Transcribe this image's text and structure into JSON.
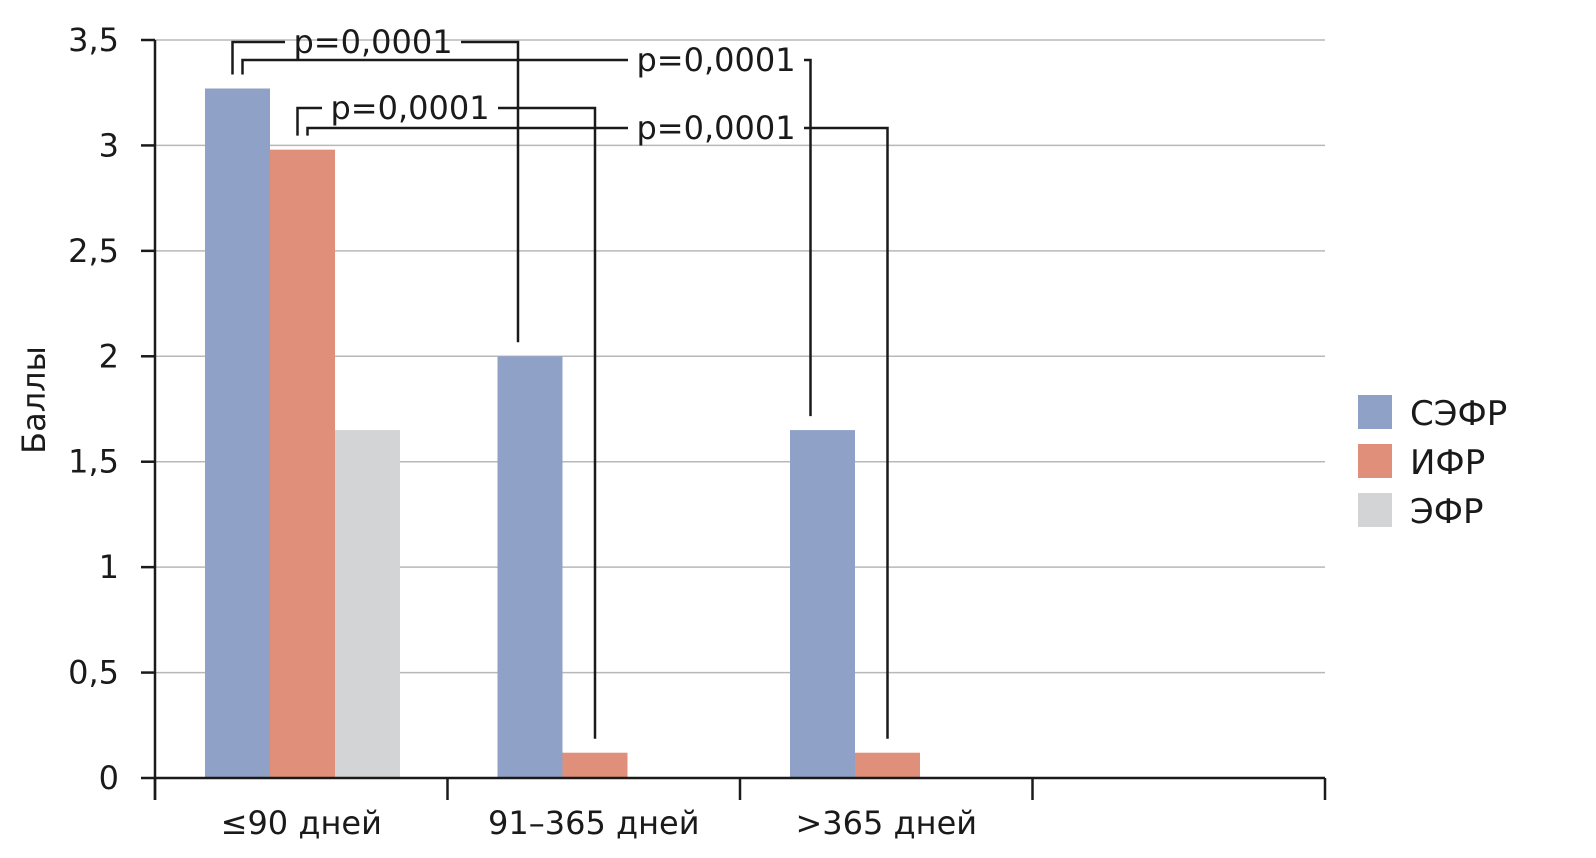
{
  "chart_data": {
    "type": "bar",
    "title": "",
    "xlabel": "",
    "ylabel": "Баллы",
    "ylim": [
      0,
      3.5
    ],
    "yticks": [
      0,
      0.5,
      1,
      1.5,
      2,
      2.5,
      3,
      3.5
    ],
    "ytick_labels": [
      "0",
      "0,5",
      "1",
      "1,5",
      "2",
      "2,5",
      "3",
      "3,5"
    ],
    "categories": [
      "≤90 дней",
      "91–365 дней",
      ">365 дней",
      ""
    ],
    "series": [
      {
        "name": "СЭФР",
        "color": "#8fa1c6",
        "values": [
          3.27,
          2.0,
          1.65,
          null
        ]
      },
      {
        "name": "ИФР",
        "color": "#e0907a",
        "values": [
          2.98,
          0.12,
          0.12,
          null
        ]
      },
      {
        "name": "ЭФР",
        "color": "#d3d4d5",
        "values": [
          1.65,
          null,
          null,
          null
        ]
      }
    ],
    "grid": true,
    "legend": "right",
    "annotations": [
      {
        "label": "p=0,0001",
        "from": {
          "category": 0,
          "series": 0
        },
        "to": {
          "category": 1,
          "series": 0
        }
      },
      {
        "label": "p=0,0001",
        "from": {
          "category": 0,
          "series": 0
        },
        "to": {
          "category": 2,
          "series": 0
        }
      },
      {
        "label": "p=0,0001",
        "from": {
          "category": 0,
          "series": 1
        },
        "to": {
          "category": 1,
          "series": 1
        }
      },
      {
        "label": "p=0,0001",
        "from": {
          "category": 0,
          "series": 1
        },
        "to": {
          "category": 2,
          "series": 1
        }
      }
    ]
  }
}
